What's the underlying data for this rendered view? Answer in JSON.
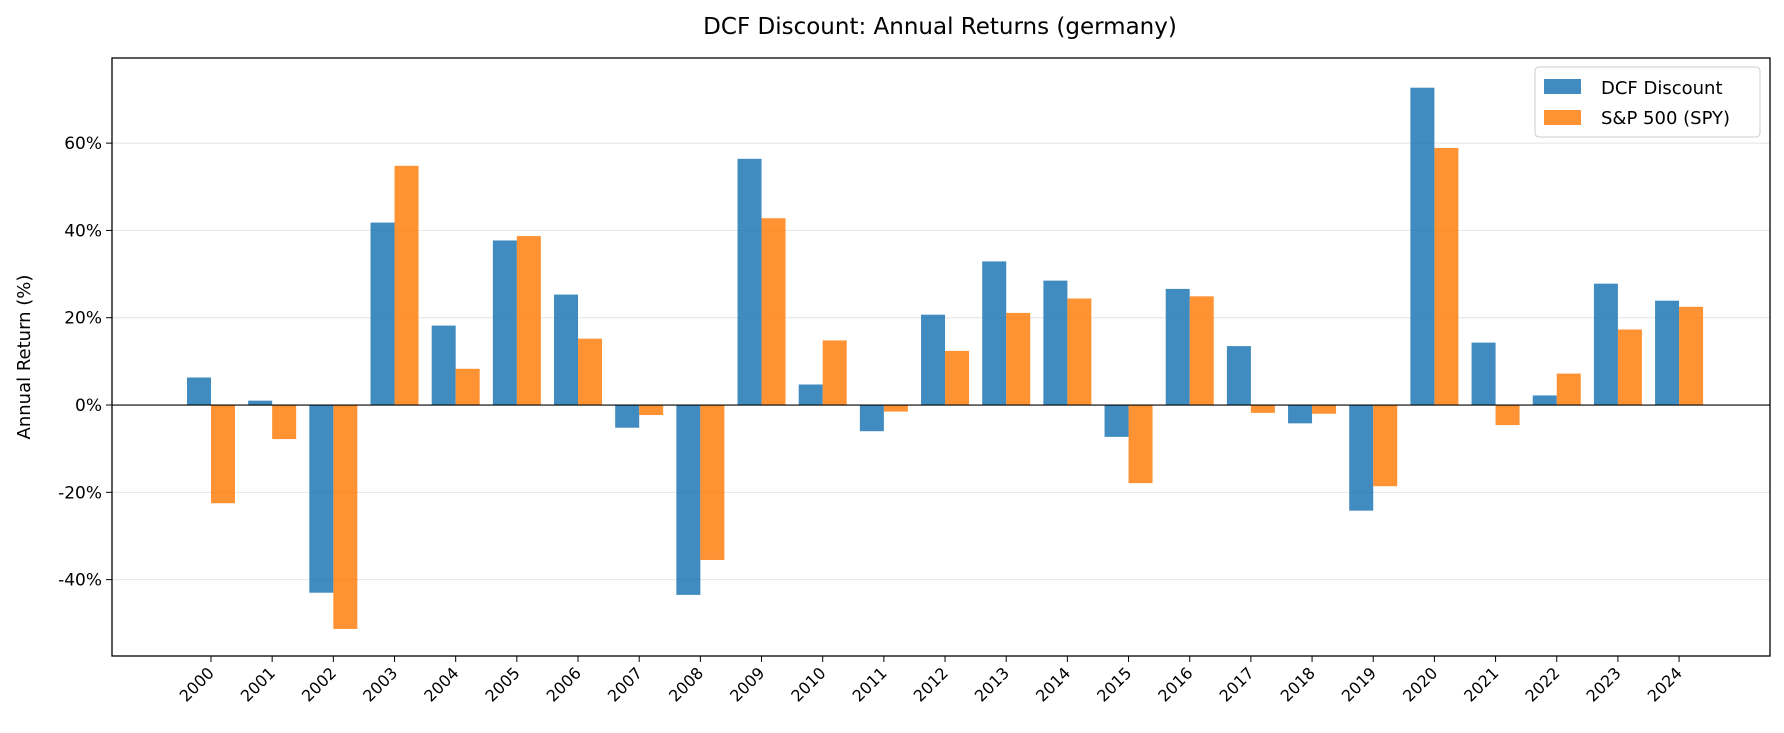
{
  "chart_data": {
    "type": "bar",
    "title": "DCF Discount: Annual Returns (germany)",
    "xlabel": "",
    "ylabel": "Annual Return (%)",
    "ylim": [
      -57.5,
      79.5
    ],
    "yticks": [
      -40,
      -20,
      0,
      20,
      40,
      60
    ],
    "ytick_labels": [
      "-40%",
      "-20%",
      "0%",
      "20%",
      "40%",
      "60%"
    ],
    "grid": "horizontal",
    "legend_position": "top-right",
    "categories": [
      "2000",
      "2001",
      "2002",
      "2003",
      "2004",
      "2005",
      "2006",
      "2007",
      "2008",
      "2009",
      "2010",
      "2011",
      "2012",
      "2013",
      "2014",
      "2015",
      "2016",
      "2017",
      "2018",
      "2019",
      "2020",
      "2021",
      "2022",
      "2023",
      "2024"
    ],
    "series": [
      {
        "name": "DCF Discount",
        "color": "#1f77b4",
        "values": [
          6.3,
          1.0,
          -43.0,
          41.8,
          18.2,
          37.7,
          25.3,
          -5.2,
          -43.5,
          56.4,
          4.7,
          -6.0,
          20.7,
          32.9,
          28.5,
          -7.3,
          26.6,
          13.5,
          -4.2,
          -24.2,
          72.7,
          14.3,
          2.2,
          27.8,
          23.9
        ]
      },
      {
        "name": "S&P 500 (SPY)",
        "color": "#ff7f0e",
        "values": [
          -22.5,
          -7.8,
          -51.3,
          54.8,
          8.3,
          38.7,
          15.2,
          -2.3,
          -35.5,
          42.8,
          14.8,
          -1.5,
          12.4,
          21.1,
          24.4,
          -17.9,
          24.9,
          -1.8,
          -2.0,
          -18.6,
          58.9,
          -4.6,
          7.2,
          17.3,
          22.5
        ]
      }
    ]
  }
}
